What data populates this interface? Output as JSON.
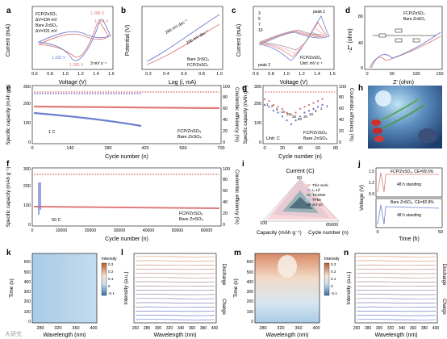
{
  "panels": {
    "a": {
      "letter": "a",
      "xlabel": "Voltage (V)",
      "ylabel": "Current (mA)",
      "legend": [
        "FCP/ZnSO₄",
        "ΔV=234 mV",
        "Bare ZnSO₄",
        "ΔV=321 mV"
      ],
      "ann": [
        "1.286 V",
        "1.564 V",
        "1.332 V",
        "1.286 V",
        "3 mV s⁻¹"
      ],
      "xticks": [
        "0.6",
        "0.8",
        "1.0",
        "1.2",
        "1.4",
        "1.6"
      ]
    },
    "b": {
      "letter": "b",
      "xlabel": "Log (i, mA)",
      "ylabel": "Potential (V)",
      "ann": [
        "286 mV dec⁻¹",
        "235 mV dec⁻¹"
      ],
      "legend": [
        "Bare ZnSO₄",
        "FCP/ZnSO₄"
      ],
      "xticks": [
        "0.2",
        "0.4",
        "0.6",
        "0.8",
        "1.0"
      ]
    },
    "c": {
      "letter": "c",
      "xlabel": "Voltage (V)",
      "ylabel": "Current (mA)",
      "legend": [
        "3",
        "5",
        "7",
        "10"
      ],
      "ann": [
        "peak 1",
        "peak 2",
        "FCP/ZnSO₄",
        "Unit: mV s⁻¹"
      ],
      "xticks": [
        "0.6",
        "0.8",
        "1.0",
        "1.2",
        "1.4",
        "1.6"
      ]
    },
    "d": {
      "letter": "d",
      "xlabel": "Z' (ohm)",
      "ylabel": "-Z'' (ohm)",
      "legend": [
        "FCP/ZnSO₄",
        "Bare ZnSO₄"
      ],
      "yticks": [
        "0",
        "40",
        "80"
      ],
      "xticks": [
        "0",
        "50",
        "100",
        "150"
      ]
    },
    "e": {
      "letter": "e",
      "xlabel": "Cycle number (n)",
      "ylabel": "Specific capacity (mAh g⁻¹)",
      "ylabel2": "Coulombic efficiency (%)",
      "ann": "1 C",
      "legend": [
        "FCP/ZnSO₄",
        "Bare ZnSO₄"
      ],
      "xticks": [
        "0",
        "140",
        "280",
        "420",
        "560",
        "700"
      ],
      "yticks": [
        "0",
        "100",
        "200",
        "300"
      ],
      "y2ticks": [
        "0",
        "20",
        "40",
        "60",
        "80",
        "100"
      ]
    },
    "f": {
      "letter": "f",
      "xlabel": "Cycle number (n)",
      "ylabel": "Specific capacity (mAh g⁻¹)",
      "ylabel2": "Coulombic efficiency (%)",
      "ann": "50 C",
      "legend": [
        "FCP/ZnSO₄",
        "Bare ZnSO₄"
      ],
      "xticks": [
        "0",
        "10000",
        "20000",
        "30000",
        "40000",
        "50000",
        "60000"
      ],
      "yticks": [
        "0",
        "100",
        "200",
        "300"
      ],
      "y2ticks": [
        "0",
        "20",
        "40",
        "60",
        "80",
        "100"
      ]
    },
    "g": {
      "letter": "g",
      "xlabel": "Cycle number (n)",
      "ylabel": "Specific capacity (mAh g⁻¹)",
      "ylabel2": "Coulombic efficiency (%)",
      "rates": [
        "1",
        "2",
        "5",
        "10",
        "20",
        "30",
        "50",
        "20",
        "10",
        "5",
        "2",
        "1"
      ],
      "ann": "Unit: C",
      "legend": [
        "FCP/ZnSO₄",
        "Bare ZnSO₄"
      ],
      "xticks": [
        "0",
        "20",
        "40",
        "60",
        "80"
      ],
      "yticks": [
        "0",
        "100",
        "200",
        "300"
      ],
      "y2ticks": [
        "0",
        "20",
        "40",
        "60",
        "80",
        "100"
      ]
    },
    "h": {
      "letter": "h"
    },
    "i": {
      "letter": "i",
      "title": "Current (C)",
      "axes": [
        "Capacity (mAh g⁻¹)",
        "Cycle number (n)"
      ],
      "ticks": [
        "50",
        "100",
        "65000"
      ],
      "legend": [
        "This work",
        "I₂-Lif",
        "TmOMe",
        "TFMI",
        "SA-10"
      ]
    },
    "j": {
      "letter": "j",
      "xlabel": "Time (h)",
      "ylabel": "Voltage (V)",
      "top": [
        "FCP/ZnSO₄, CE=99.5%",
        "48 h standing"
      ],
      "bottom": [
        "Bare ZnSO₄, CE=82.8%",
        "48 h standing"
      ],
      "xticks": [
        "0",
        "50"
      ],
      "yticks": [
        "0.9",
        "1.2",
        "1.5"
      ]
    },
    "k": {
      "letter": "k",
      "xlabel": "Wavelength (nm)",
      "ylabel": "Time (s)",
      "cbar": "Intensity",
      "cticks": [
        "0.3",
        "0.2",
        "0.1",
        "0",
        "-0.1"
      ],
      "xticks": [
        "280",
        "320",
        "360",
        "400"
      ],
      "yticks": [
        "0",
        "100",
        "200",
        "300",
        "400",
        "500",
        "600"
      ]
    },
    "l": {
      "letter": "l",
      "xlabel": "Wavelength (nm)",
      "ylabel": "Intensity (a.u.)",
      "side": [
        "Discharge",
        "Charge"
      ],
      "xticks": [
        "260",
        "280",
        "300",
        "320",
        "340",
        "360",
        "380",
        "400"
      ]
    },
    "m": {
      "letter": "m",
      "xlabel": "Wavelength (nm)",
      "ylabel": "Time (s)",
      "cbar": "Intensity",
      "cticks": [
        "0.3",
        "0.2",
        "0.1",
        "0",
        "-0.1"
      ],
      "xticks": [
        "280",
        "320",
        "360",
        "400"
      ],
      "yticks": [
        "0",
        "100",
        "200",
        "300",
        "400",
        "500",
        "600"
      ]
    },
    "n": {
      "letter": "n",
      "xlabel": "Wavelength (nm)",
      "ylabel": "Intensity (a.u.)",
      "side": [
        "Discharge",
        "Charge"
      ],
      "xticks": [
        "260",
        "280",
        "300",
        "320",
        "340",
        "360",
        "380",
        "400"
      ]
    }
  },
  "watermark": "大研究",
  "colors": {
    "fcp": "#e07b7b",
    "bare": "#6f7fd0",
    "pink": "#f2a8b8"
  },
  "chart_data": [
    {
      "panel": "e",
      "type": "line",
      "series": [
        {
          "name": "FCP/ZnSO₄",
          "x": [
            0,
            700
          ],
          "values": [
            210,
            205
          ]
        },
        {
          "name": "Bare ZnSO₄",
          "x": [
            0,
            400
          ],
          "values": [
            150,
            110
          ]
        }
      ]
    },
    {
      "panel": "f",
      "type": "line",
      "series": [
        {
          "name": "FCP/ZnSO₄",
          "x": [
            0,
            65000
          ],
          "values": [
            95,
            85
          ]
        },
        {
          "name": "Bare ZnSO₄",
          "x": [
            0,
            3000
          ],
          "values": [
            60,
            60
          ]
        }
      ]
    },
    {
      "panel": "g",
      "type": "scatter",
      "series": [
        {
          "name": "FCP/ZnSO₄",
          "x": [
            0,
            5,
            10,
            15,
            20,
            25,
            30,
            35,
            40,
            45,
            50,
            55,
            60,
            65
          ],
          "values": [
            230,
            220,
            200,
            190,
            180,
            160,
            150,
            160,
            180,
            190,
            200,
            210,
            220,
            230
          ]
        },
        {
          "name": "Bare ZnSO₄",
          "x": [
            0,
            5,
            10,
            15,
            20,
            25,
            30,
            35,
            40,
            45,
            50,
            55,
            60,
            65
          ],
          "values": [
            200,
            190,
            170,
            160,
            140,
            120,
            100,
            120,
            140,
            160,
            170,
            180,
            190,
            200
          ]
        }
      ]
    }
  ]
}
